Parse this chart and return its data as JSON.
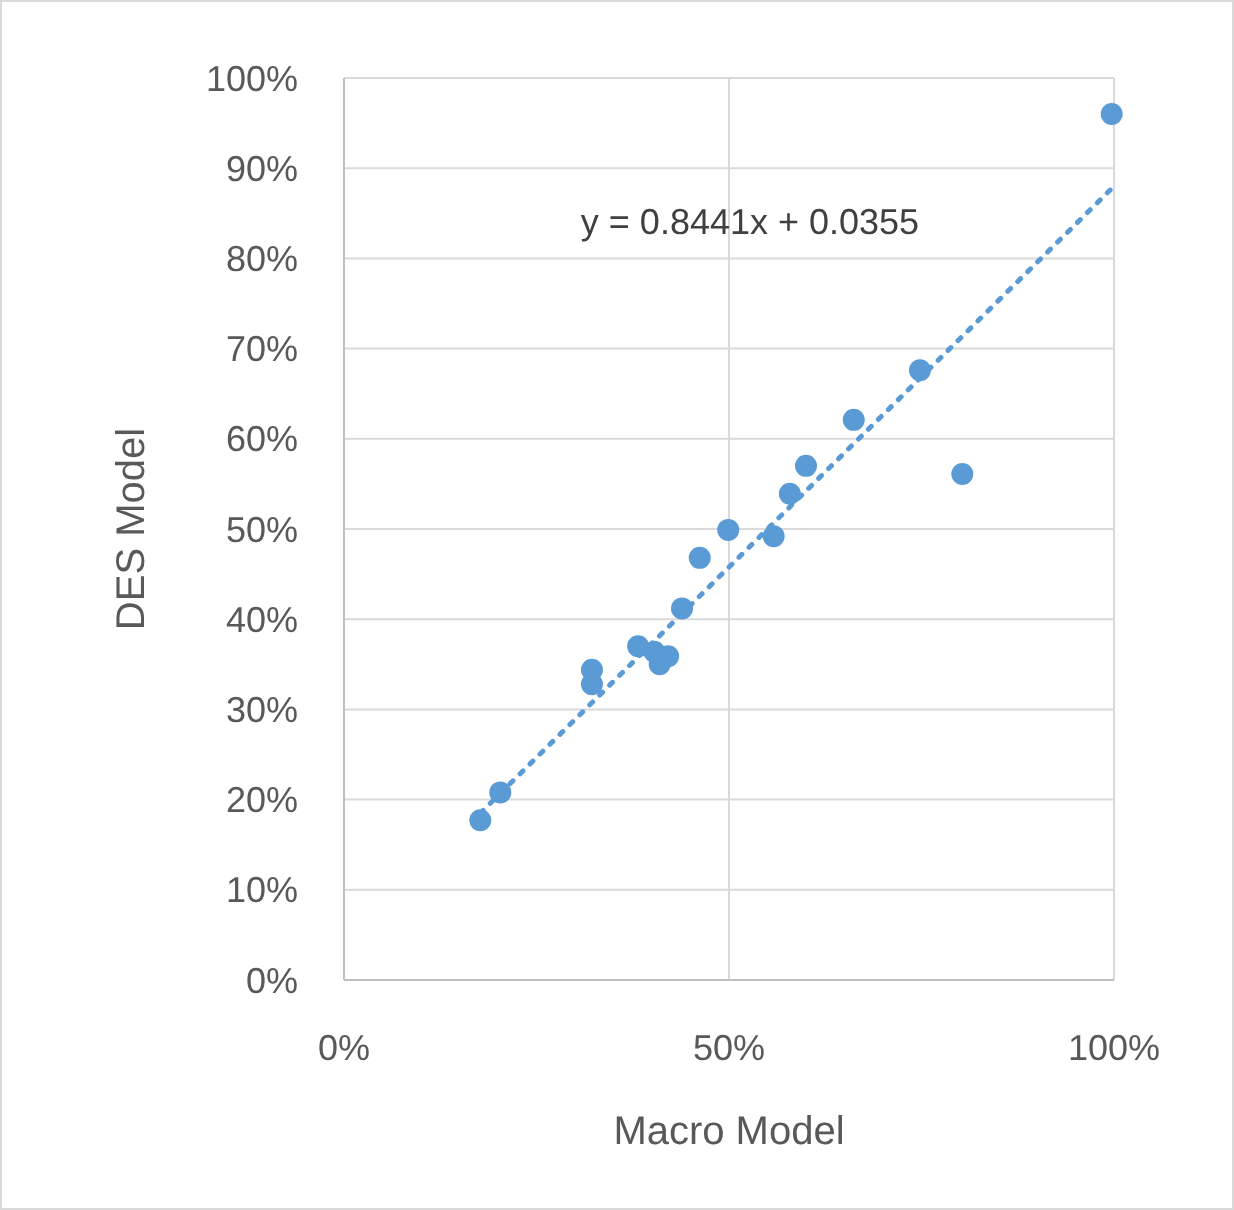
{
  "chart_data": {
    "type": "scatter",
    "xlabel": "Macro Model",
    "ylabel": "DES Model",
    "xlim": [
      0,
      100
    ],
    "xticks": [
      {
        "value": 0,
        "label": "0%"
      },
      {
        "value": 50,
        "label": "50%"
      },
      {
        "value": 100,
        "label": "100%"
      }
    ],
    "ylim": [
      0,
      100
    ],
    "yticks": [
      {
        "value": 0,
        "label": "0%"
      },
      {
        "value": 10,
        "label": "10%"
      },
      {
        "value": 20,
        "label": "20%"
      },
      {
        "value": 30,
        "label": "30%"
      },
      {
        "value": 40,
        "label": "40%"
      },
      {
        "value": 50,
        "label": "50%"
      },
      {
        "value": 60,
        "label": "60%"
      },
      {
        "value": 70,
        "label": "70%"
      },
      {
        "value": 80,
        "label": "80%"
      },
      {
        "value": 90,
        "label": "90%"
      },
      {
        "value": 100,
        "label": "100%"
      }
    ],
    "grid": true,
    "marker": "circle",
    "series": [
      {
        "color": "#5b9bd5",
        "x": [
          17.7,
          20.3,
          32.2,
          32.2,
          38.2,
          40.3,
          41.0,
          42.1,
          43.9,
          46.2,
          49.9,
          55.8,
          57.9,
          60.0,
          66.2,
          74.8,
          80.3,
          99.7
        ],
        "values": [
          17.7,
          20.8,
          34.4,
          32.8,
          37.0,
          36.4,
          35.0,
          35.9,
          41.2,
          46.8,
          49.9,
          49.2,
          53.9,
          57.0,
          62.1,
          67.6,
          56.1,
          96.0
        ]
      },
      {
        "type": "line",
        "color": "#5b9bd5",
        "line_style": "dotted",
        "marker": "none",
        "x": [
          17.7,
          100
        ],
        "values": [
          18.5,
          88.0
        ]
      }
    ],
    "annotations": [
      "y = 0.8441x + 0.0355"
    ]
  }
}
